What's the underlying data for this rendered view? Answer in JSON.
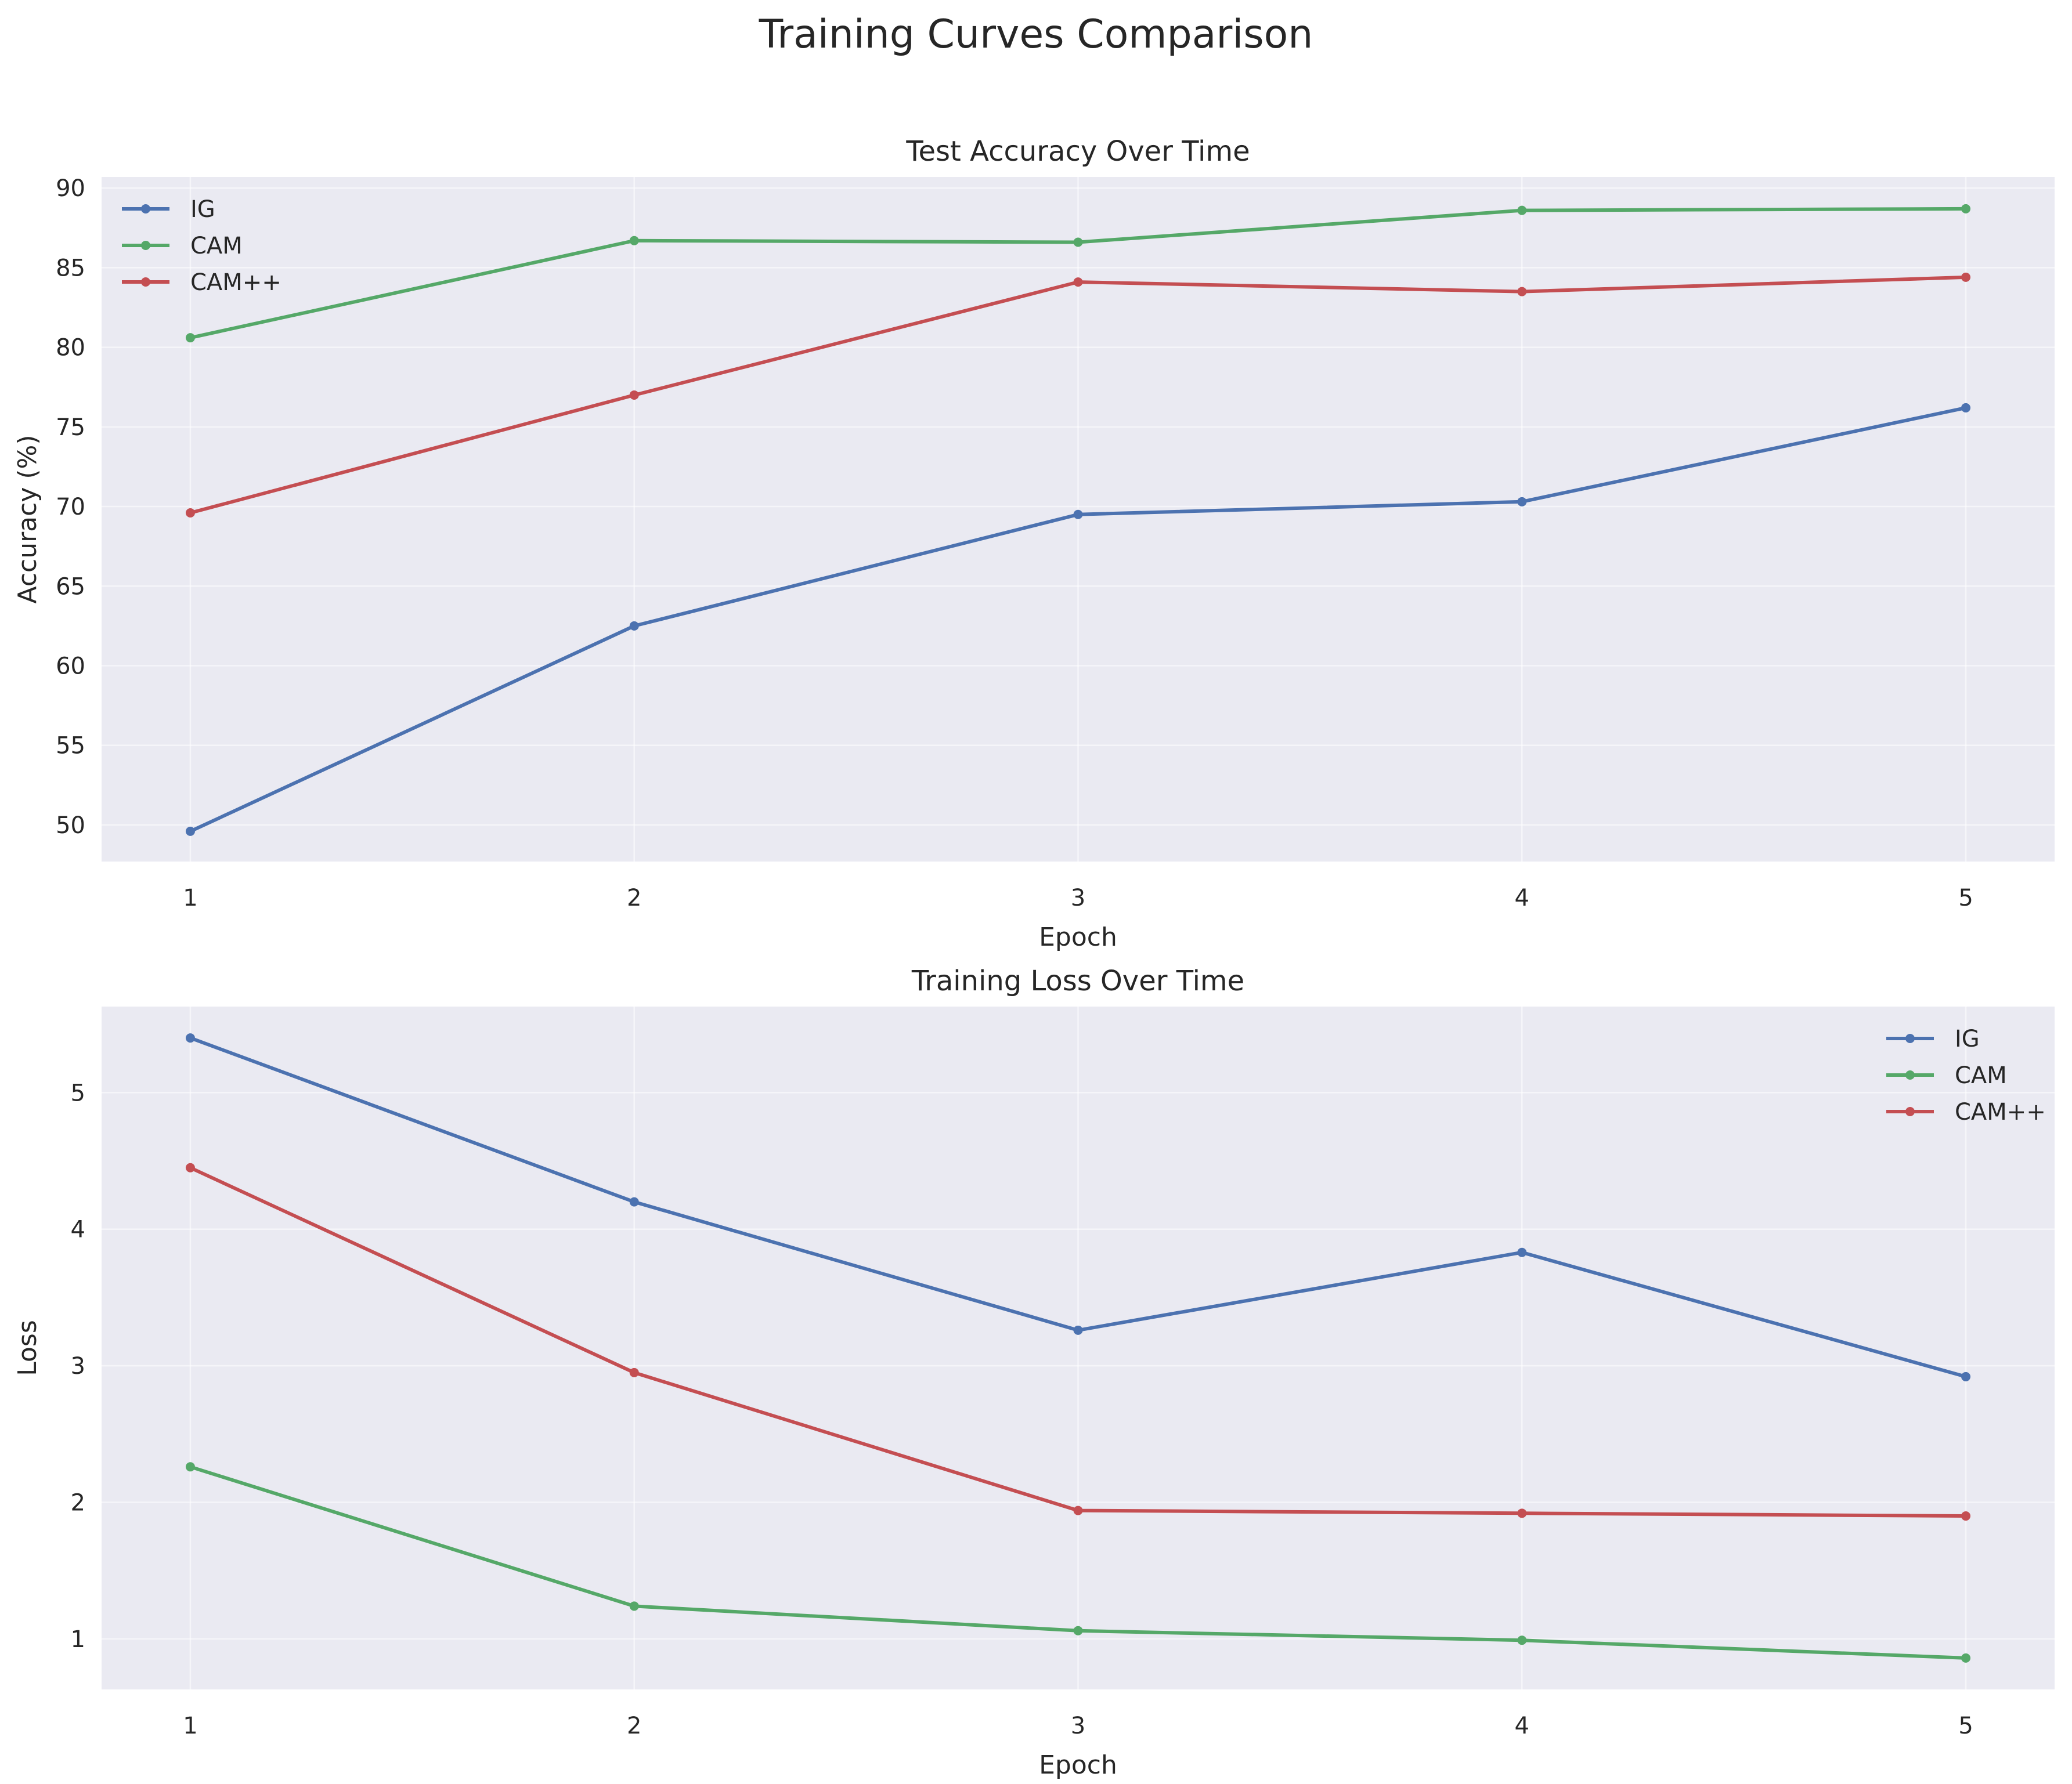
{
  "suptitle": "Training Curves Comparison",
  "chart_data": [
    {
      "type": "line",
      "title": "Test Accuracy Over Time",
      "xlabel": "Epoch",
      "ylabel": "Accuracy (%)",
      "x": [
        1,
        2,
        3,
        4,
        5
      ],
      "xticks": [
        1,
        2,
        3,
        4,
        5
      ],
      "xlim": [
        0.8,
        5.2
      ],
      "ylim": [
        47.7,
        90.7
      ],
      "yticks": [
        50,
        55,
        60,
        65,
        70,
        75,
        80,
        85,
        90
      ],
      "grid": true,
      "legend_position": "upper left",
      "series": [
        {
          "name": "IG",
          "color": "#4c72b0",
          "values": [
            49.6,
            62.5,
            69.5,
            70.3,
            76.2
          ]
        },
        {
          "name": "CAM",
          "color": "#55a868",
          "values": [
            80.6,
            86.7,
            86.6,
            88.6,
            88.7
          ]
        },
        {
          "name": "CAM++",
          "color": "#c44e52",
          "values": [
            69.6,
            77.0,
            84.1,
            83.5,
            84.4
          ]
        }
      ]
    },
    {
      "type": "line",
      "title": "Training Loss Over Time",
      "xlabel": "Epoch",
      "ylabel": "Loss",
      "x": [
        1,
        2,
        3,
        4,
        5
      ],
      "xticks": [
        1,
        2,
        3,
        4,
        5
      ],
      "xlim": [
        0.8,
        5.2
      ],
      "ylim": [
        0.63,
        5.63
      ],
      "yticks": [
        1,
        2,
        3,
        4,
        5
      ],
      "grid": true,
      "legend_position": "upper right",
      "series": [
        {
          "name": "IG",
          "color": "#4c72b0",
          "values": [
            5.4,
            4.2,
            3.26,
            3.83,
            2.92
          ]
        },
        {
          "name": "CAM",
          "color": "#55a868",
          "values": [
            2.26,
            1.24,
            1.06,
            0.99,
            0.86
          ]
        },
        {
          "name": "CAM++",
          "color": "#c44e52",
          "values": [
            4.45,
            2.95,
            1.94,
            1.92,
            1.9
          ]
        }
      ]
    }
  ]
}
